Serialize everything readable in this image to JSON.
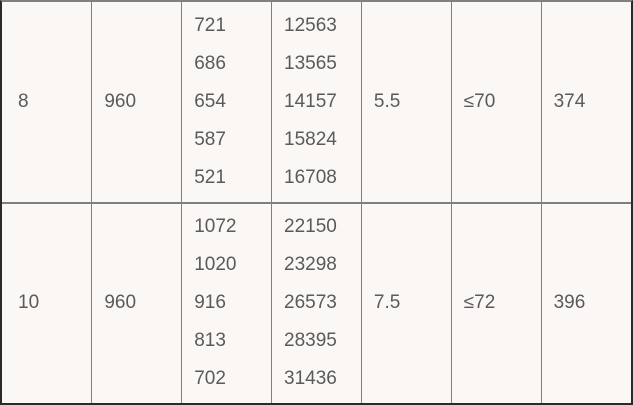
{
  "colors": {
    "background": "#fbf7f4",
    "text": "#5a5a5a",
    "inner_border": "#7f7f7f",
    "outer_border": "#2a2a2a"
  },
  "rows": [
    {
      "cells": [
        {
          "lines": [
            "8"
          ]
        },
        {
          "lines": [
            "960"
          ]
        },
        {
          "lines": [
            "721",
            "686",
            "654",
            "587",
            "521"
          ]
        },
        {
          "lines": [
            "12563",
            "13565",
            "14157",
            "15824",
            "16708"
          ]
        },
        {
          "lines": [
            "5.5"
          ]
        },
        {
          "lines": [
            "≤70"
          ]
        },
        {
          "lines": [
            "374"
          ]
        }
      ]
    },
    {
      "cells": [
        {
          "lines": [
            "10"
          ]
        },
        {
          "lines": [
            "960"
          ]
        },
        {
          "lines": [
            "1072",
            "1020",
            "916",
            "813",
            "702"
          ]
        },
        {
          "lines": [
            "22150",
            "23298",
            "26573",
            "28395",
            "31436"
          ]
        },
        {
          "lines": [
            "7.5"
          ]
        },
        {
          "lines": [
            "≤72"
          ]
        },
        {
          "lines": [
            "396"
          ]
        }
      ]
    }
  ]
}
